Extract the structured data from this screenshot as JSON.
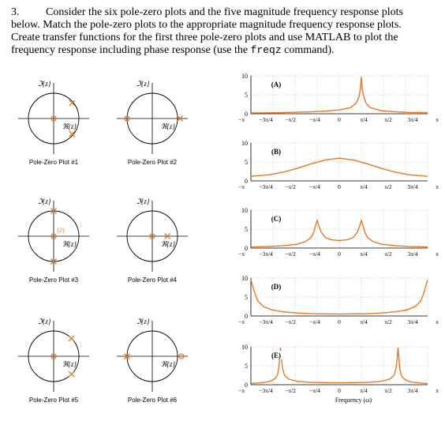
{
  "question": {
    "number": "3.",
    "lines": [
      "Consider the six pole-zero plots and the five magnitude frequency response plots",
      "below.  Match the pole-zero plots to the appropriate magnitude frequency response plots.",
      "Create transfer functions for the first three pole-zero plots and use MATLAB to plot the",
      "frequency response including phase response (use the"
    ],
    "command": "freqz",
    "tail": " command)."
  },
  "axis_labels": {
    "imag": "ℑ{z}",
    "real": "ℜ{z}"
  },
  "pole_zero_plots": [
    {
      "caption": "Pole-Zero Plot #1"
    },
    {
      "caption": "Pole-Zero Plot #2"
    },
    {
      "caption": "Pole-Zero Plot #3",
      "multiplicity_label": "(2)"
    },
    {
      "caption": "Pole-Zero Plot #4"
    },
    {
      "caption": "Pole-Zero Plot #5"
    },
    {
      "caption": "Pole-Zero Plot #6"
    }
  ],
  "colors": {
    "accent": "#e87722",
    "axis": "#000000",
    "grid": "#999999"
  },
  "chart_data": [
    {
      "type": "line",
      "label": "(A)",
      "yticks": [
        "0",
        "5",
        "10"
      ],
      "ylim": [
        0,
        10
      ],
      "xlim": [
        -3.1416,
        3.1416
      ],
      "xtick_labels": [
        "−π",
        "−3π/4",
        "−π/2",
        "−π/4",
        "0",
        "π/4",
        "π/2",
        "3π/4",
        "π"
      ],
      "x": [
        -3.14,
        -2.5,
        -2.0,
        -1.5,
        -1.0,
        -0.5,
        0.0,
        0.4,
        0.6,
        0.7,
        0.75,
        0.785,
        0.82,
        0.87,
        0.95,
        1.1,
        1.5,
        2.0,
        2.5,
        3.14
      ],
      "values": [
        0.2,
        0.25,
        0.3,
        0.4,
        0.5,
        0.7,
        1.0,
        1.6,
        2.8,
        4.5,
        6.5,
        9.7,
        6.5,
        4.5,
        2.8,
        1.6,
        0.8,
        0.5,
        0.35,
        0.3
      ]
    },
    {
      "type": "line",
      "label": "(B)",
      "yticks": [
        "0",
        "5",
        "10"
      ],
      "ylim": [
        0,
        10
      ],
      "xlim": [
        -3.1416,
        3.1416
      ],
      "xtick_labels": [
        "−π",
        "−3π/4",
        "−π/2",
        "−π/4",
        "0",
        "π/4",
        "π/2",
        "3π/4",
        "π"
      ],
      "x": [
        -3.14,
        -2.5,
        -2.0,
        -1.5,
        -1.0,
        -0.5,
        0.0,
        0.5,
        1.0,
        1.5,
        2.0,
        2.5,
        3.14
      ],
      "values": [
        1.2,
        1.6,
        2.3,
        3.3,
        4.5,
        5.5,
        6.0,
        5.5,
        4.5,
        3.3,
        2.3,
        1.6,
        1.2
      ]
    },
    {
      "type": "line",
      "label": "(C)",
      "yticks": [
        "0",
        "5",
        "10"
      ],
      "ylim": [
        0,
        10
      ],
      "xlim": [
        -3.1416,
        3.1416
      ],
      "xtick_labels": [
        "−π",
        "−3π/4",
        "−π/2",
        "−π/4",
        "0",
        "π/4",
        "π/2",
        "3π/4",
        "π"
      ],
      "x": [
        -3.14,
        -2.5,
        -2.0,
        -1.5,
        -1.2,
        -1.0,
        -0.9,
        -0.85,
        -0.785,
        -0.72,
        -0.65,
        -0.5,
        -0.3,
        0.0,
        0.3,
        0.5,
        0.65,
        0.72,
        0.785,
        0.85,
        0.9,
        1.0,
        1.2,
        1.5,
        2.0,
        2.5,
        3.14
      ],
      "values": [
        0.3,
        0.4,
        0.6,
        1.0,
        1.7,
        2.8,
        4.3,
        5.8,
        7.3,
        5.8,
        4.3,
        2.8,
        2.2,
        2.0,
        2.2,
        2.8,
        4.3,
        5.8,
        7.3,
        5.8,
        4.3,
        2.8,
        1.7,
        1.0,
        0.6,
        0.4,
        0.3
      ]
    },
    {
      "type": "line",
      "label": "(D)",
      "yticks": [
        "0",
        "5",
        "10"
      ],
      "ylim": [
        0,
        10
      ],
      "xlim": [
        -3.1416,
        3.1416
      ],
      "xtick_labels": [
        "−π",
        "−3π/4",
        "−π/2",
        "−π/4",
        "0",
        "π/4",
        "π/2",
        "3π/4",
        "π"
      ],
      "x": [
        -3.14,
        -3.1,
        -3.0,
        -2.9,
        -2.7,
        -2.4,
        -2.0,
        -1.5,
        -1.0,
        0.0,
        1.0,
        1.5,
        2.0,
        2.4,
        2.7,
        2.9,
        3.0,
        3.1,
        3.14
      ],
      "values": [
        9.5,
        8.5,
        6.0,
        4.0,
        2.5,
        1.6,
        1.1,
        0.8,
        0.6,
        0.5,
        0.6,
        0.8,
        1.1,
        1.6,
        2.5,
        4.0,
        6.0,
        8.5,
        9.5
      ]
    },
    {
      "type": "line",
      "label": "(E)",
      "yticks": [
        "0",
        "5",
        "10"
      ],
      "ylim": [
        0,
        10
      ],
      "xlim": [
        -3.1416,
        3.1416
      ],
      "xlabel": "Frequency (ω)",
      "xtick_labels": [
        "−π",
        "−3π/4",
        "−π/2",
        "−π/4",
        "0",
        "π/4",
        "π/2",
        "3π/4",
        "π"
      ],
      "x": [
        -3.14,
        -2.8,
        -2.5,
        -2.3,
        -2.2,
        -2.15,
        -2.12,
        -2.09,
        -2.06,
        -2.02,
        -1.95,
        -1.8,
        -1.5,
        -1.0,
        0.0,
        1.0,
        1.5,
        1.8,
        1.95,
        2.02,
        2.06,
        2.09,
        2.12,
        2.15,
        2.2,
        2.3,
        2.5,
        2.8,
        3.14
      ],
      "values": [
        0.3,
        0.5,
        0.8,
        1.5,
        2.5,
        4.5,
        7.0,
        9.8,
        7.0,
        4.5,
        2.5,
        1.5,
        0.9,
        0.6,
        0.5,
        0.6,
        0.9,
        1.5,
        2.5,
        4.5,
        7.0,
        9.8,
        7.0,
        4.5,
        2.5,
        1.5,
        0.8,
        0.5,
        0.3
      ]
    }
  ]
}
